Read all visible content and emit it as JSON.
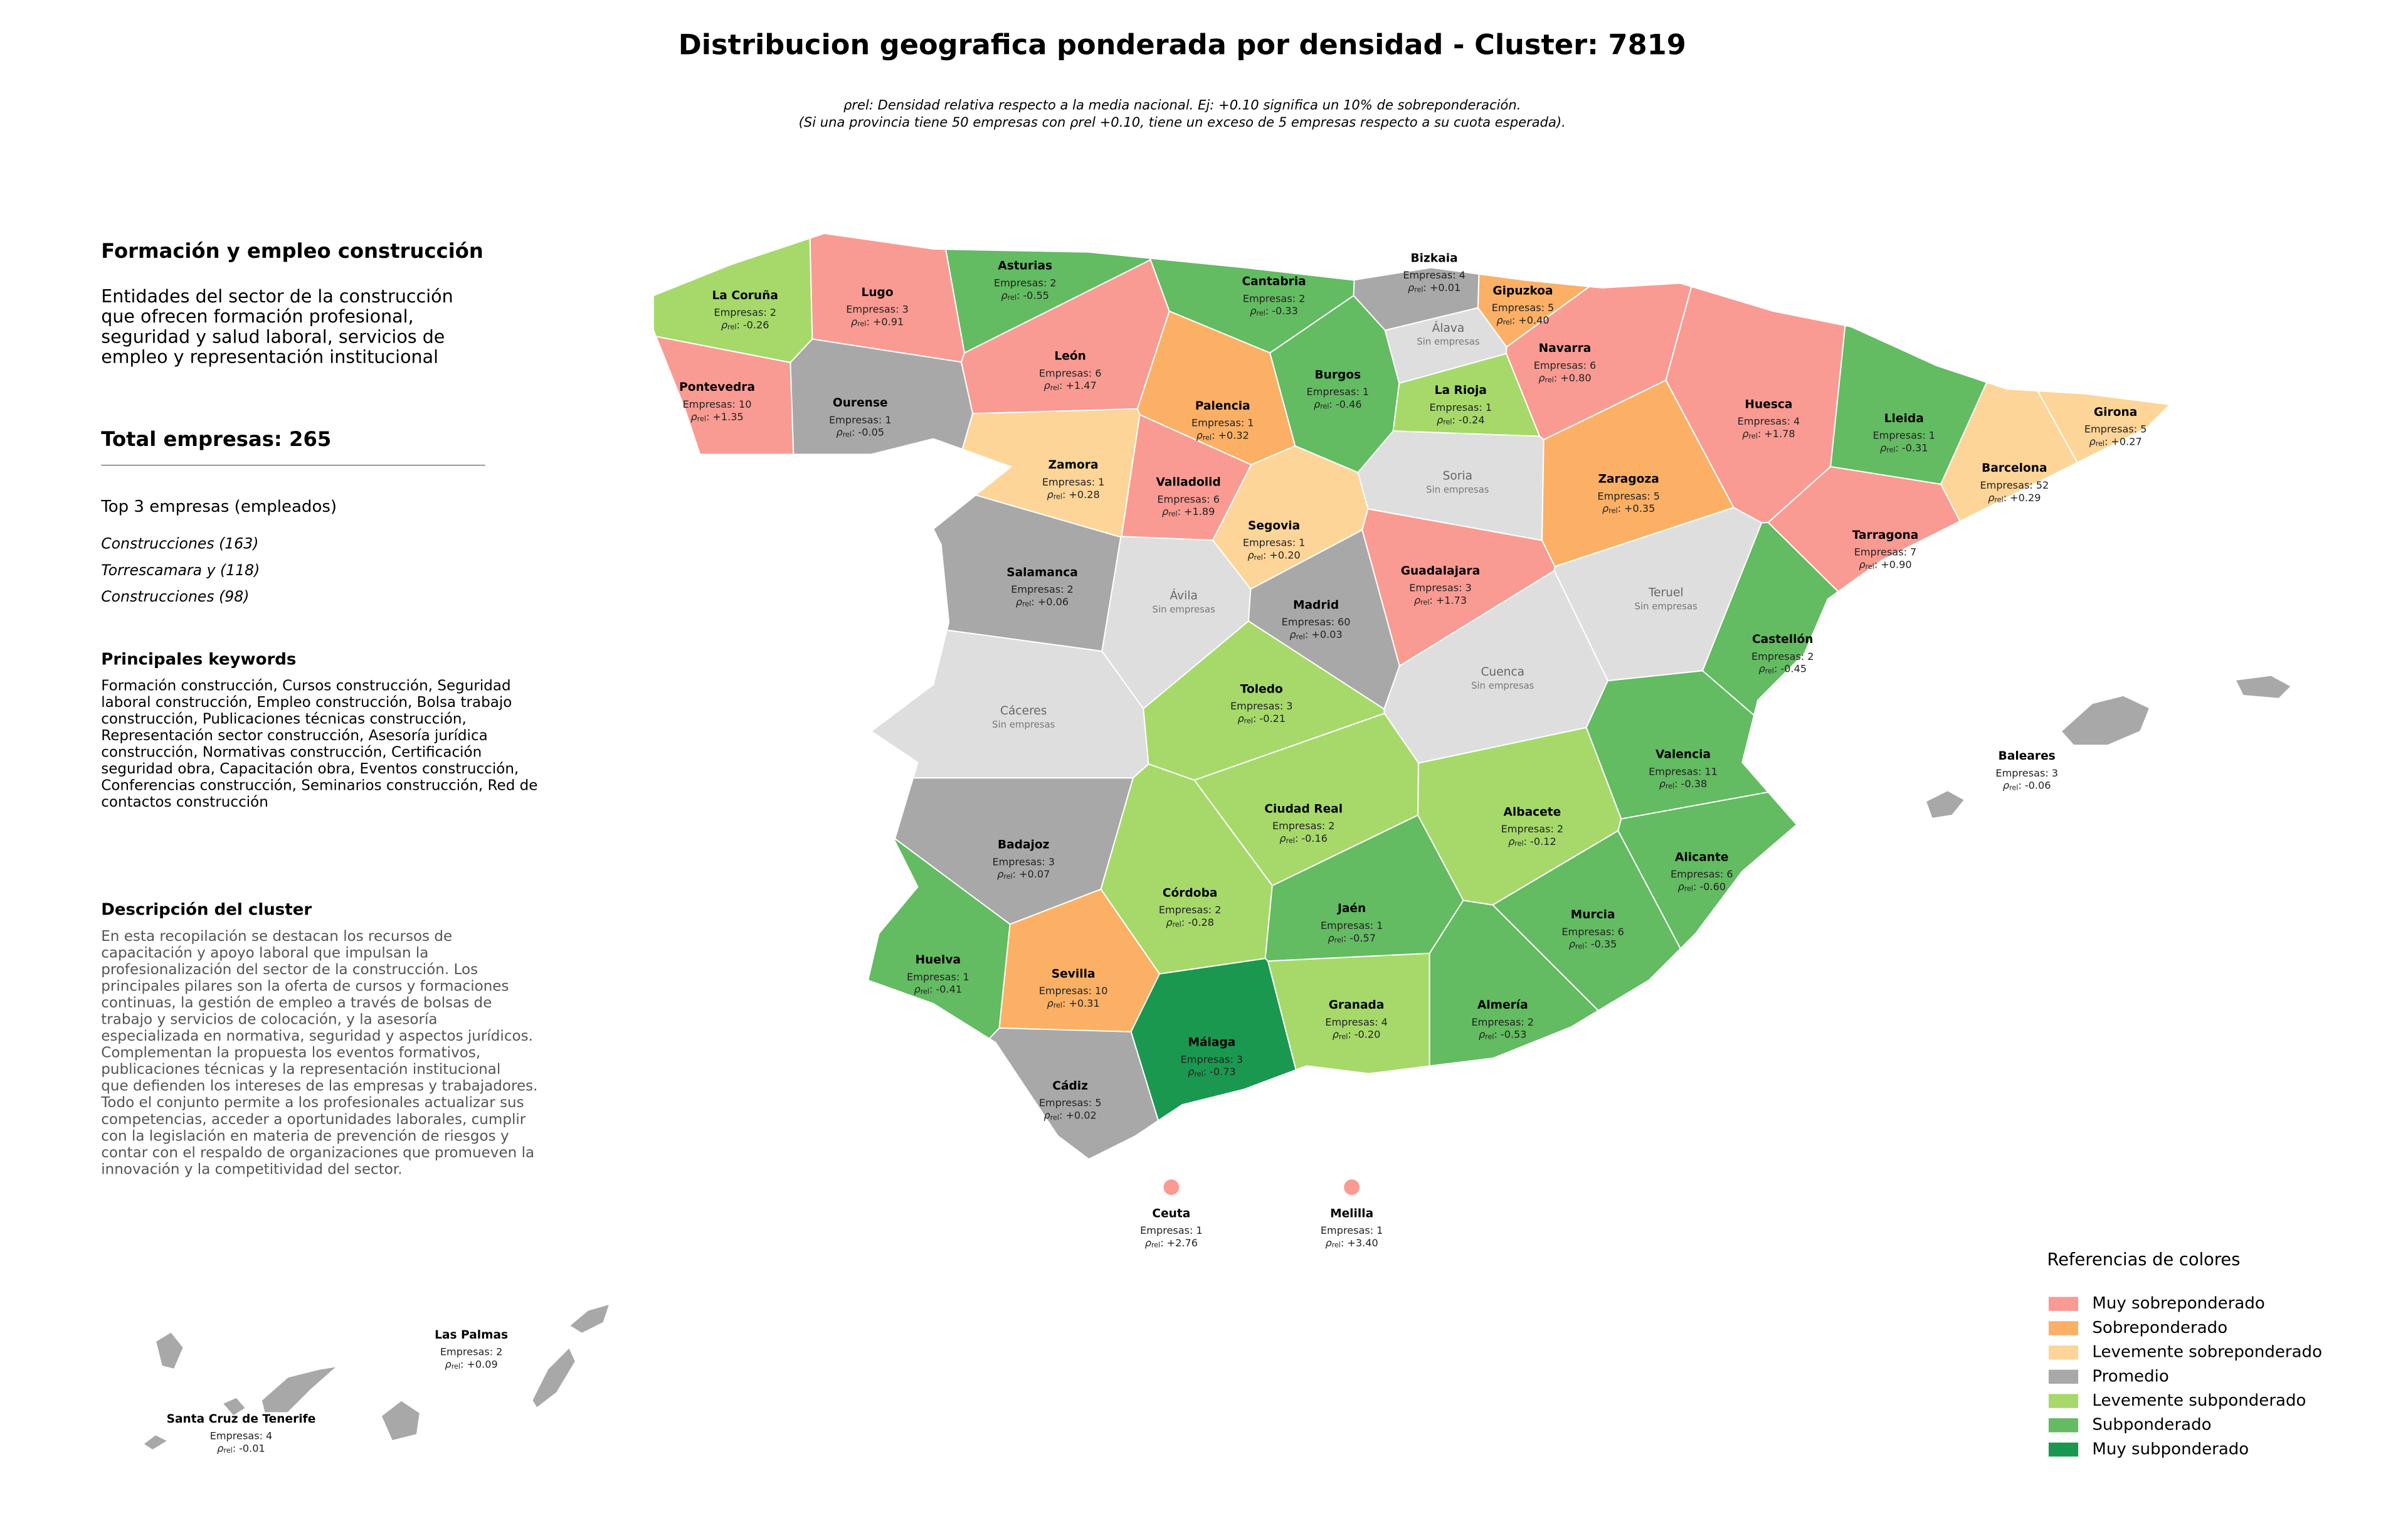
{
  "title": "Distribucion geografica ponderada por densidad - Cluster: 7819",
  "subtitle": [
    "ρrel: Densidad relativa respecto a la media nacional. Ej: +0.10 significa un 10% de sobreponderación.",
    "(Si una provincia tiene 50 empresas con ρrel +0.10, tiene un exceso de 5 empresas respecto a su cuota esperada)."
  ],
  "panel": {
    "heading": "Formación y empleo construcción",
    "description": [
      "Entidades del sector de la construcción",
      "que ofrecen formación profesional,",
      "seguridad y salud laboral, servicios de",
      "empleo y representación institucional"
    ],
    "total": "Total empresas: 265",
    "top_title": "Top 3 empresas (empleados)",
    "top": [
      "Construcciones (163)",
      "Torrescamara y (118)",
      "Construcciones (98)"
    ],
    "keywords_title": "Principales keywords",
    "keywords": [
      "Formación construcción, Cursos construcción, Seguridad",
      "laboral construcción, Empleo construcción, Bolsa trabajo",
      "construcción, Publicaciones técnicas construcción,",
      "Representación sector construcción, Asesoría jurídica",
      "construcción, Normativas construcción, Certificación",
      "seguridad obra, Capacitación obra, Eventos construcción,",
      "Conferencias construcción, Seminarios construcción, Red de",
      "contactos construcción"
    ],
    "cluster_title": "Descripción del cluster",
    "cluster_text": [
      "En esta recopilación se destacan los recursos de",
      "capacitación y apoyo laboral que impulsan la",
      "profesionalización del sector de la construcción. Los",
      "principales pilares son la oferta de cursos y formaciones",
      "continuas, la gestión de empleo a través de bolsas de",
      "trabajo y servicios de colocación, y la asesoría",
      "especializada en normativa, seguridad y aspectos jurídicos.",
      "Complementan la propuesta los eventos formativos,",
      "publicaciones técnicas y la representación institucional",
      "que defienden los intereses de las empresas y trabajadores.",
      "Todo el conjunto permite a los profesionales actualizar sus",
      "competencias, acceder a oportunidades laborales, cumplir",
      "con la legislación en materia de prevención de riesgos y",
      "contar con el respaldo de organizaciones que promueven la",
      "innovación y la competitividad del sector."
    ]
  },
  "labels": {
    "empresas": "Empresas:",
    "rho_symbol": "ρ",
    "rho_sub": "rel",
    "rho_tail": ":"
  },
  "provinces": [
    {
      "name": "La Coruña",
      "empresas": 2,
      "rho": -0.26,
      "color": "#a6d96a"
    },
    {
      "name": "Lugo",
      "empresas": 3,
      "rho": {
        "value": 0.91,
        "label": "+0.91"
      },
      "color": "#f99b93"
    },
    {
      "name": "Asturias",
      "empresas": 2,
      "rho": -0.55,
      "color": "#63bb62"
    },
    {
      "name": "Cantabria",
      "empresas": 2,
      "rho": -0.33,
      "color": "#63bb62"
    },
    {
      "name": "Bizkaia",
      "empresas": 4,
      "rho": {
        "value": 0.01,
        "label": "+0.01"
      },
      "color": "#a8a8a8"
    },
    {
      "name": "Gipuzkoa",
      "empresas": 5,
      "rho": {
        "value": 0.4,
        "label": "+0.40"
      },
      "color": "#fbb065"
    },
    {
      "name": "Pontevedra",
      "empresas": 10,
      "rho": {
        "value": 1.35,
        "label": "+1.35"
      },
      "color": "#f99b93"
    },
    {
      "name": "Ourense",
      "empresas": 1,
      "rho": -0.05,
      "color": "#a8a8a8"
    },
    {
      "name": "León",
      "empresas": 6,
      "rho": {
        "value": 1.47,
        "label": "+1.47"
      },
      "color": "#f99b93"
    },
    {
      "name": "Palencia",
      "empresas": 1,
      "rho": {
        "value": 0.32,
        "label": "+0.32"
      },
      "color": "#fbb065"
    },
    {
      "name": "Burgos",
      "empresas": 1,
      "rho": -0.46,
      "color": "#63bb62"
    },
    {
      "name": "Álava",
      "status": "Sin empresas",
      "color": "#dedede"
    },
    {
      "name": "La Rioja",
      "empresas": 1,
      "rho": -0.24,
      "color": "#a6d96a"
    },
    {
      "name": "Navarra",
      "empresas": 6,
      "rho": {
        "value": 0.8,
        "label": "+0.80"
      },
      "color": "#f99b93"
    },
    {
      "name": "Huesca",
      "empresas": 4,
      "rho": {
        "value": 1.78,
        "label": "+1.78"
      },
      "color": "#f99b93"
    },
    {
      "name": "Lleida",
      "empresas": 1,
      "rho": -0.31,
      "color": "#63bb62"
    },
    {
      "name": "Girona",
      "empresas": 5,
      "rho": {
        "value": 0.27,
        "label": "+0.27"
      },
      "color": "#fdd598"
    },
    {
      "name": "Zamora",
      "empresas": 1,
      "rho": {
        "value": 0.28,
        "label": "+0.28"
      },
      "color": "#fdd598"
    },
    {
      "name": "Valladolid",
      "empresas": 6,
      "rho": {
        "value": 1.89,
        "label": "+1.89"
      },
      "color": "#f99b93"
    },
    {
      "name": "Soria",
      "status": "Sin empresas",
      "color": "#dedede"
    },
    {
      "name": "Zaragoza",
      "empresas": 5,
      "rho": {
        "value": 0.35,
        "label": "+0.35"
      },
      "color": "#fbb065"
    },
    {
      "name": "Barcelona",
      "empresas": 52,
      "rho": {
        "value": 0.29,
        "label": "+0.29"
      },
      "color": "#fdd598"
    },
    {
      "name": "Tarragona",
      "empresas": 7,
      "rho": {
        "value": 0.9,
        "label": "+0.90"
      },
      "color": "#f99b93"
    },
    {
      "name": "Segovia",
      "empresas": 1,
      "rho": {
        "value": 0.2,
        "label": "+0.20"
      },
      "color": "#fdd598"
    },
    {
      "name": "Salamanca",
      "empresas": 2,
      "rho": {
        "value": 0.06,
        "label": "+0.06"
      },
      "color": "#a8a8a8"
    },
    {
      "name": "Guadalajara",
      "empresas": 3,
      "rho": {
        "value": 1.73,
        "label": "+1.73"
      },
      "color": "#f99b93"
    },
    {
      "name": "Ávila",
      "status": "Sin empresas",
      "color": "#dedede"
    },
    {
      "name": "Madrid",
      "empresas": 60,
      "rho": {
        "value": 0.03,
        "label": "+0.03"
      },
      "color": "#a8a8a8"
    },
    {
      "name": "Teruel",
      "status": "Sin empresas",
      "color": "#dedede"
    },
    {
      "name": "Castellón",
      "empresas": 2,
      "rho": -0.45,
      "color": "#63bb62"
    },
    {
      "name": "Toledo",
      "empresas": 3,
      "rho": -0.21,
      "color": "#a6d96a"
    },
    {
      "name": "Cuenca",
      "status": "Sin empresas",
      "color": "#dedede"
    },
    {
      "name": "Cáceres",
      "status": "Sin empresas",
      "color": "#dedede"
    },
    {
      "name": "Valencia",
      "empresas": 11,
      "rho": -0.38,
      "color": "#63bb62"
    },
    {
      "name": "Baleares",
      "empresas": 3,
      "rho": -0.06,
      "color": "#a8a8a8"
    },
    {
      "name": "Ciudad Real",
      "empresas": 2,
      "rho": -0.16,
      "color": "#a6d96a"
    },
    {
      "name": "Albacete",
      "empresas": 2,
      "rho": -0.12,
      "color": "#a6d96a"
    },
    {
      "name": "Badajoz",
      "empresas": 3,
      "rho": {
        "value": 0.07,
        "label": "+0.07"
      },
      "color": "#a8a8a8"
    },
    {
      "name": "Alicante",
      "empresas": 6,
      "rho": {
        "value": -0.6,
        "label": "-0.60"
      },
      "color": "#63bb62"
    },
    {
      "name": "Córdoba",
      "empresas": 2,
      "rho": -0.28,
      "color": "#a6d96a"
    },
    {
      "name": "Jaén",
      "empresas": 1,
      "rho": -0.57,
      "color": "#63bb62"
    },
    {
      "name": "Murcia",
      "empresas": 6,
      "rho": -0.35,
      "color": "#63bb62"
    },
    {
      "name": "Huelva",
      "empresas": 1,
      "rho": -0.41,
      "color": "#63bb62"
    },
    {
      "name": "Sevilla",
      "empresas": 10,
      "rho": {
        "value": 0.31,
        "label": "+0.31"
      },
      "color": "#fbb065"
    },
    {
      "name": "Granada",
      "empresas": 4,
      "rho": {
        "value": -0.2,
        "label": "-0.20"
      },
      "color": "#a6d96a"
    },
    {
      "name": "Almería",
      "empresas": 2,
      "rho": -0.53,
      "color": "#63bb62"
    },
    {
      "name": "Málaga",
      "empresas": 3,
      "rho": -0.73,
      "color": "#1a9850"
    },
    {
      "name": "Cádiz",
      "empresas": 5,
      "rho": {
        "value": 0.02,
        "label": "+0.02"
      },
      "color": "#a8a8a8"
    },
    {
      "name": "Ceuta",
      "empresas": 1,
      "rho": {
        "value": 2.76,
        "label": "+2.76"
      },
      "color": "#f99b93"
    },
    {
      "name": "Melilla",
      "empresas": 1,
      "rho": {
        "value": 3.4,
        "label": "+3.40"
      },
      "color": "#f99b93"
    },
    {
      "name": "Las Palmas",
      "empresas": 2,
      "rho": {
        "value": 0.09,
        "label": "+0.09"
      },
      "color": "#a8a8a8"
    },
    {
      "name": "Santa Cruz de Tenerife",
      "empresas": 4,
      "rho": -0.01,
      "color": "#a8a8a8"
    }
  ],
  "legend": {
    "title": "Referencias de colores",
    "items": [
      {
        "name": "Muy sobreponderado",
        "color": "#f99b93"
      },
      {
        "name": "Sobreponderado",
        "color": "#fbb065"
      },
      {
        "name": "Levemente sobreponderado",
        "color": "#fdd598"
      },
      {
        "name": "Promedio",
        "color": "#a8a8a8"
      },
      {
        "name": "Levemente subponderado",
        "color": "#a6d96a"
      },
      {
        "name": "Subponderado",
        "color": "#63bb62"
      },
      {
        "name": "Muy subponderado",
        "color": "#1a9850"
      }
    ]
  }
}
